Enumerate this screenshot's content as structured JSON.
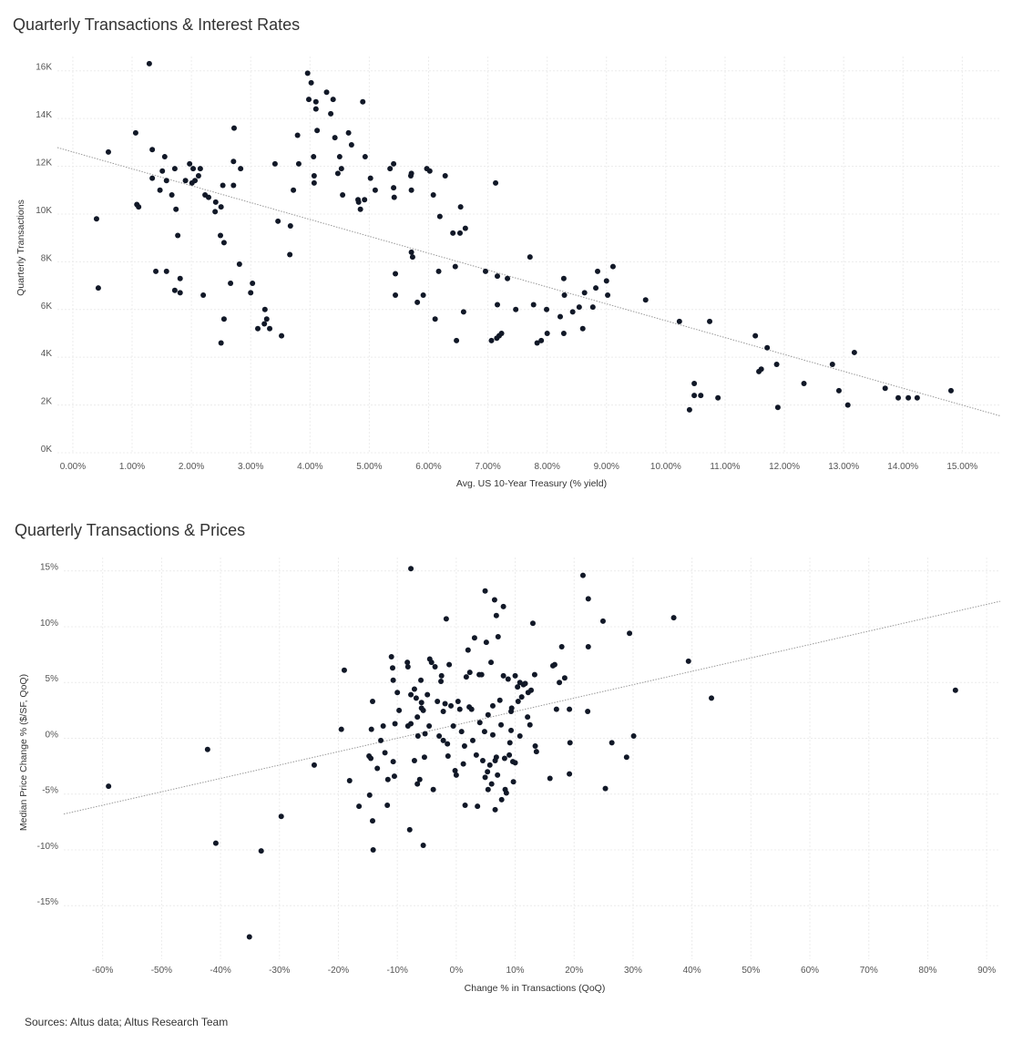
{
  "source_note": "Sources: Altus data; Altus Research Team",
  "chart_data": [
    {
      "type": "scatter",
      "title": "Quarterly Transactions & Interest Rates",
      "xlabel": "Avg. US 10-Year Treasury (% yield)",
      "ylabel": "Quarterly Transactions",
      "xlim": [
        -0.26,
        15.64
      ],
      "ylim": [
        0,
        16.6
      ],
      "grid": true,
      "x_ticks": [
        0,
        1,
        2,
        3,
        4,
        5,
        6,
        7,
        8,
        9,
        10,
        11,
        12,
        13,
        14,
        15
      ],
      "x_tick_labels": [
        "0.00%",
        "1.00%",
        "2.00%",
        "3.00%",
        "4.00%",
        "5.00%",
        "6.00%",
        "7.00%",
        "8.00%",
        "9.00%",
        "10.00%",
        "11.00%",
        "12.00%",
        "13.00%",
        "14.00%",
        "15.00%"
      ],
      "y_ticks": [
        0,
        2,
        4,
        6,
        8,
        10,
        12,
        14,
        16
      ],
      "y_tick_labels": [
        "0K",
        "2K",
        "4K",
        "6K",
        "8K",
        "10K",
        "12K",
        "14K",
        "16K"
      ],
      "trendline": {
        "intercept": 12.6,
        "slope": -0.707,
        "x_range": [
          -0.26,
          15.64
        ]
      },
      "points": [
        [
          1.29,
          16.3
        ],
        [
          0.4,
          9.8
        ],
        [
          0.43,
          6.9
        ],
        [
          0.6,
          12.6
        ],
        [
          1.06,
          13.4
        ],
        [
          1.08,
          10.4
        ],
        [
          1.11,
          10.3
        ],
        [
          1.34,
          12.7
        ],
        [
          1.34,
          11.5
        ],
        [
          1.4,
          7.6
        ],
        [
          1.47,
          11.0
        ],
        [
          1.51,
          11.8
        ],
        [
          1.55,
          12.4
        ],
        [
          1.58,
          7.6
        ],
        [
          1.58,
          11.4
        ],
        [
          1.67,
          10.8
        ],
        [
          1.72,
          11.9
        ],
        [
          1.74,
          10.2
        ],
        [
          1.77,
          9.1
        ],
        [
          1.72,
          6.8
        ],
        [
          1.81,
          7.3
        ],
        [
          1.81,
          6.7
        ],
        [
          1.9,
          11.4
        ],
        [
          1.97,
          12.1
        ],
        [
          2.01,
          11.3
        ],
        [
          2.03,
          11.9
        ],
        [
          2.06,
          11.4
        ],
        [
          2.12,
          11.6
        ],
        [
          2.15,
          11.9
        ],
        [
          2.23,
          10.8
        ],
        [
          2.29,
          10.7
        ],
        [
          2.2,
          6.6
        ],
        [
          2.41,
          10.5
        ],
        [
          2.4,
          10.1
        ],
        [
          2.5,
          10.3
        ],
        [
          2.53,
          11.2
        ],
        [
          2.49,
          9.1
        ],
        [
          2.55,
          8.8
        ],
        [
          2.55,
          5.6
        ],
        [
          2.5,
          4.6
        ],
        [
          2.66,
          7.1
        ],
        [
          2.71,
          12.2
        ],
        [
          2.71,
          11.2
        ],
        [
          2.72,
          13.6
        ],
        [
          2.83,
          11.9
        ],
        [
          2.81,
          7.9
        ],
        [
          3.0,
          6.7
        ],
        [
          3.03,
          7.1
        ],
        [
          3.12,
          5.2
        ],
        [
          3.24,
          6.0
        ],
        [
          3.23,
          5.4
        ],
        [
          3.27,
          5.6
        ],
        [
          3.32,
          5.2
        ],
        [
          3.41,
          12.1
        ],
        [
          3.46,
          9.7
        ],
        [
          3.52,
          4.9
        ],
        [
          3.67,
          9.5
        ],
        [
          3.66,
          8.3
        ],
        [
          3.72,
          11.0
        ],
        [
          3.79,
          13.3
        ],
        [
          3.81,
          12.1
        ],
        [
          3.96,
          15.9
        ],
        [
          4.02,
          15.5
        ],
        [
          3.98,
          14.8
        ],
        [
          4.06,
          12.4
        ],
        [
          4.07,
          11.6
        ],
        [
          4.07,
          11.3
        ],
        [
          4.1,
          14.7
        ],
        [
          4.1,
          14.4
        ],
        [
          4.12,
          13.5
        ],
        [
          4.28,
          15.1
        ],
        [
          4.35,
          14.2
        ],
        [
          4.39,
          14.8
        ],
        [
          4.42,
          13.2
        ],
        [
          4.47,
          11.7
        ],
        [
          4.5,
          12.4
        ],
        [
          4.53,
          11.9
        ],
        [
          4.55,
          10.8
        ],
        [
          4.65,
          13.4
        ],
        [
          4.7,
          12.9
        ],
        [
          4.81,
          10.6
        ],
        [
          4.82,
          10.5
        ],
        [
          4.85,
          10.2
        ],
        [
          4.89,
          14.7
        ],
        [
          4.92,
          10.6
        ],
        [
          4.93,
          12.4
        ],
        [
          5.02,
          11.5
        ],
        [
          5.1,
          11.0
        ],
        [
          5.35,
          11.9
        ],
        [
          5.41,
          12.1
        ],
        [
          5.41,
          11.1
        ],
        [
          5.42,
          10.7
        ],
        [
          5.44,
          7.5
        ],
        [
          5.44,
          6.6
        ],
        [
          5.7,
          11.6
        ],
        [
          5.71,
          11.7
        ],
        [
          5.71,
          11.0
        ],
        [
          5.71,
          8.4
        ],
        [
          5.73,
          8.2
        ],
        [
          5.81,
          6.3
        ],
        [
          5.91,
          6.6
        ],
        [
          5.97,
          11.9
        ],
        [
          6.02,
          11.8
        ],
        [
          6.08,
          10.8
        ],
        [
          6.11,
          5.6
        ],
        [
          6.17,
          7.6
        ],
        [
          6.19,
          9.9
        ],
        [
          6.28,
          11.6
        ],
        [
          6.41,
          9.2
        ],
        [
          6.45,
          7.8
        ],
        [
          6.47,
          4.7
        ],
        [
          6.53,
          9.2
        ],
        [
          6.54,
          10.3
        ],
        [
          6.59,
          5.9
        ],
        [
          6.62,
          9.4
        ],
        [
          7.13,
          11.3
        ],
        [
          6.96,
          7.6
        ],
        [
          7.06,
          4.7
        ],
        [
          7.16,
          7.4
        ],
        [
          7.16,
          6.2
        ],
        [
          7.15,
          4.8
        ],
        [
          7.19,
          4.9
        ],
        [
          7.23,
          5.0
        ],
        [
          7.33,
          7.3
        ],
        [
          7.47,
          6.0
        ],
        [
          7.71,
          8.2
        ],
        [
          7.77,
          6.2
        ],
        [
          7.83,
          4.6
        ],
        [
          7.9,
          4.7
        ],
        [
          7.99,
          6.0
        ],
        [
          8.0,
          5.0
        ],
        [
          8.22,
          5.7
        ],
        [
          8.28,
          7.3
        ],
        [
          8.29,
          6.6
        ],
        [
          8.28,
          5.0
        ],
        [
          8.43,
          5.9
        ],
        [
          8.54,
          6.1
        ],
        [
          8.6,
          5.2
        ],
        [
          8.63,
          6.7
        ],
        [
          8.77,
          6.1
        ],
        [
          8.82,
          6.9
        ],
        [
          8.85,
          7.6
        ],
        [
          9.0,
          7.2
        ],
        [
          9.02,
          6.6
        ],
        [
          9.11,
          7.8
        ],
        [
          9.66,
          6.4
        ],
        [
          10.23,
          5.5
        ],
        [
          10.74,
          5.5
        ],
        [
          10.4,
          1.8
        ],
        [
          10.48,
          2.9
        ],
        [
          10.48,
          2.4
        ],
        [
          10.59,
          2.4
        ],
        [
          10.88,
          2.3
        ],
        [
          11.51,
          4.9
        ],
        [
          11.57,
          3.4
        ],
        [
          11.61,
          3.5
        ],
        [
          11.71,
          4.4
        ],
        [
          11.87,
          3.7
        ],
        [
          11.89,
          1.9
        ],
        [
          12.33,
          2.9
        ],
        [
          12.81,
          3.7
        ],
        [
          12.92,
          2.6
        ],
        [
          13.07,
          2.0
        ],
        [
          13.18,
          4.2
        ],
        [
          13.7,
          2.7
        ],
        [
          13.92,
          2.3
        ],
        [
          14.09,
          2.3
        ],
        [
          14.24,
          2.3
        ],
        [
          14.81,
          2.6
        ]
      ]
    },
    {
      "type": "scatter",
      "title": "Quarterly Transactions & Prices",
      "xlabel": "Change % in Transactions (QoQ)",
      "ylabel": "Median Price Change % ($/SF, QoQ)",
      "xlim": [
        -66.6,
        92.3
      ],
      "ylim": [
        -19.8,
        16.2
      ],
      "grid": true,
      "x_ticks": [
        -60,
        -50,
        -40,
        -30,
        -20,
        -10,
        0,
        10,
        20,
        30,
        40,
        50,
        60,
        70,
        80,
        90
      ],
      "x_tick_labels": [
        "-60%",
        "-50%",
        "-40%",
        "-30%",
        "-20%",
        "-10%",
        "0%",
        "10%",
        "20%",
        "30%",
        "40%",
        "50%",
        "60%",
        "70%",
        "80%",
        "90%"
      ],
      "y_ticks": [
        -15,
        -10,
        -5,
        0,
        5,
        10,
        15
      ],
      "y_tick_labels": [
        "-15%",
        "-10%",
        "-5%",
        "0%",
        "5%",
        "10%",
        "15%"
      ],
      "trendline": {
        "intercept": 1.2,
        "slope": 0.12,
        "x_range": [
          -66.6,
          92.3
        ]
      },
      "points": [
        [
          -59.0,
          -4.3
        ],
        [
          -42.2,
          -1.0
        ],
        [
          -40.8,
          -9.4
        ],
        [
          -33.1,
          -10.1
        ],
        [
          -35.1,
          -17.8
        ],
        [
          -29.7,
          -7.0
        ],
        [
          -24.1,
          -2.4
        ],
        [
          -19.5,
          0.8
        ],
        [
          -19.0,
          6.1
        ],
        [
          -18.1,
          -3.8
        ],
        [
          -16.5,
          -6.1
        ],
        [
          -14.7,
          -5.1
        ],
        [
          -14.8,
          -1.6
        ],
        [
          -14.5,
          -1.8
        ],
        [
          -14.2,
          3.3
        ],
        [
          -14.2,
          -7.4
        ],
        [
          -14.1,
          -10.0
        ],
        [
          -14.4,
          0.8
        ],
        [
          -13.4,
          -2.7
        ],
        [
          -12.8,
          -0.2
        ],
        [
          -12.4,
          1.1
        ],
        [
          -12.1,
          -1.3
        ],
        [
          -11.7,
          -6.0
        ],
        [
          -11.6,
          -3.7
        ],
        [
          -11.0,
          7.3
        ],
        [
          -10.8,
          6.3
        ],
        [
          -10.7,
          5.2
        ],
        [
          -10.5,
          -3.4
        ],
        [
          -10.4,
          1.3
        ],
        [
          -10.7,
          -2.1
        ],
        [
          -10.0,
          4.1
        ],
        [
          -9.7,
          2.5
        ],
        [
          -8.3,
          6.8
        ],
        [
          -8.2,
          6.4
        ],
        [
          -7.9,
          -8.2
        ],
        [
          -7.7,
          15.2
        ],
        [
          -7.7,
          3.9
        ],
        [
          -8.2,
          1.1
        ],
        [
          -7.7,
          1.3
        ],
        [
          -7.1,
          4.4
        ],
        [
          -7.1,
          -2.0
        ],
        [
          -6.8,
          3.6
        ],
        [
          -6.6,
          1.9
        ],
        [
          -6.6,
          -4.1
        ],
        [
          -6.5,
          0.2
        ],
        [
          -6.2,
          -3.7
        ],
        [
          -6.0,
          5.2
        ],
        [
          -5.9,
          2.7
        ],
        [
          -5.9,
          3.2
        ],
        [
          -5.6,
          2.5
        ],
        [
          -5.6,
          -9.6
        ],
        [
          -5.4,
          -1.7
        ],
        [
          -5.3,
          0.4
        ],
        [
          -4.9,
          3.9
        ],
        [
          -4.6,
          1.1
        ],
        [
          -4.5,
          7.1
        ],
        [
          -4.2,
          6.8
        ],
        [
          -3.9,
          -4.6
        ],
        [
          -3.6,
          6.4
        ],
        [
          -3.2,
          3.3
        ],
        [
          -2.9,
          0.2
        ],
        [
          -2.6,
          5.1
        ],
        [
          -2.5,
          5.6
        ],
        [
          -2.2,
          -0.2
        ],
        [
          -2.2,
          2.4
        ],
        [
          -1.9,
          3.1
        ],
        [
          -1.5,
          -0.5
        ],
        [
          -1.4,
          -1.6
        ],
        [
          -1.7,
          10.7
        ],
        [
          -1.2,
          6.6
        ],
        [
          -0.9,
          2.9
        ],
        [
          -0.5,
          1.1
        ],
        [
          -0.2,
          -2.9
        ],
        [
          0.0,
          -3.3
        ],
        [
          0.3,
          3.3
        ],
        [
          0.6,
          2.6
        ],
        [
          0.9,
          0.6
        ],
        [
          1.2,
          -2.3
        ],
        [
          1.4,
          -0.7
        ],
        [
          1.5,
          -6.0
        ],
        [
          1.7,
          5.5
        ],
        [
          2.0,
          7.9
        ],
        [
          2.2,
          2.8
        ],
        [
          2.3,
          5.9
        ],
        [
          2.6,
          2.6
        ],
        [
          2.8,
          -0.2
        ],
        [
          3.1,
          9.0
        ],
        [
          3.4,
          -1.5
        ],
        [
          3.6,
          -6.1
        ],
        [
          3.9,
          5.7
        ],
        [
          4.0,
          1.4
        ],
        [
          4.3,
          5.7
        ],
        [
          4.5,
          -2.0
        ],
        [
          4.8,
          0.6
        ],
        [
          4.9,
          -3.5
        ],
        [
          4.9,
          13.2
        ],
        [
          5.1,
          8.6
        ],
        [
          5.3,
          -3.0
        ],
        [
          5.4,
          -4.6
        ],
        [
          5.4,
          2.1
        ],
        [
          5.7,
          -2.4
        ],
        [
          5.9,
          6.8
        ],
        [
          6.0,
          -4.1
        ],
        [
          6.2,
          0.3
        ],
        [
          6.2,
          2.9
        ],
        [
          6.5,
          12.4
        ],
        [
          6.6,
          -2.0
        ],
        [
          6.6,
          -6.4
        ],
        [
          6.8,
          -1.7
        ],
        [
          6.8,
          11.0
        ],
        [
          7.0,
          -3.3
        ],
        [
          7.1,
          9.1
        ],
        [
          7.4,
          3.4
        ],
        [
          7.6,
          1.2
        ],
        [
          7.7,
          -5.5
        ],
        [
          8.0,
          5.6
        ],
        [
          8.0,
          11.8
        ],
        [
          8.2,
          -1.8
        ],
        [
          8.3,
          -4.6
        ],
        [
          8.5,
          -4.9
        ],
        [
          8.8,
          5.3
        ],
        [
          9.0,
          -1.5
        ],
        [
          9.1,
          -0.4
        ],
        [
          9.3,
          0.7
        ],
        [
          9.3,
          2.4
        ],
        [
          9.4,
          2.7
        ],
        [
          9.6,
          -2.1
        ],
        [
          9.7,
          -3.9
        ],
        [
          10.0,
          5.6
        ],
        [
          10.0,
          -2.2
        ],
        [
          10.4,
          4.6
        ],
        [
          10.5,
          3.3
        ],
        [
          10.8,
          0.2
        ],
        [
          10.8,
          5.0
        ],
        [
          11.1,
          3.7
        ],
        [
          11.4,
          4.8
        ],
        [
          11.7,
          4.9
        ],
        [
          12.1,
          1.9
        ],
        [
          12.2,
          4.1
        ],
        [
          12.5,
          1.2
        ],
        [
          12.7,
          4.3
        ],
        [
          13.0,
          10.3
        ],
        [
          13.3,
          5.7
        ],
        [
          13.4,
          -0.7
        ],
        [
          13.6,
          -1.2
        ],
        [
          15.9,
          -3.6
        ],
        [
          16.4,
          6.5
        ],
        [
          16.7,
          6.6
        ],
        [
          17.0,
          2.6
        ],
        [
          17.5,
          5.0
        ],
        [
          17.9,
          8.2
        ],
        [
          18.4,
          5.4
        ],
        [
          19.2,
          -3.2
        ],
        [
          19.2,
          2.6
        ],
        [
          19.3,
          -0.4
        ],
        [
          21.5,
          14.6
        ],
        [
          22.3,
          2.4
        ],
        [
          22.4,
          12.5
        ],
        [
          22.4,
          8.2
        ],
        [
          24.9,
          10.5
        ],
        [
          25.3,
          -4.5
        ],
        [
          26.4,
          -0.4
        ],
        [
          28.9,
          -1.7
        ],
        [
          29.4,
          9.4
        ],
        [
          30.1,
          0.2
        ],
        [
          36.9,
          10.8
        ],
        [
          39.4,
          6.9
        ],
        [
          43.3,
          3.6
        ],
        [
          84.7,
          4.3
        ]
      ]
    }
  ]
}
